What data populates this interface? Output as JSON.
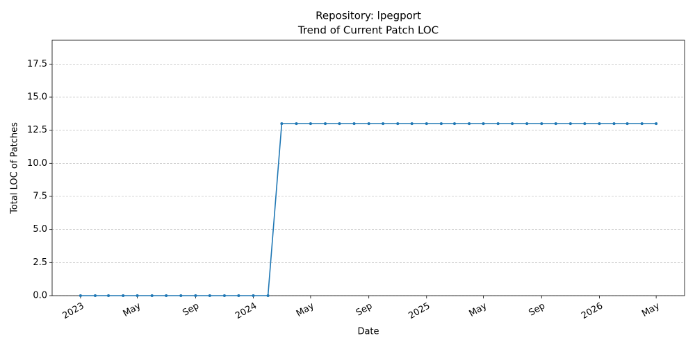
{
  "chart_data": {
    "type": "line",
    "title": "Repository: lpegport",
    "subtitle": "Trend of Current Patch LOC",
    "x_label": "Date",
    "y_label": "Total LOC of Patches",
    "x": [
      "2023-01",
      "2023-02",
      "2023-03",
      "2023-04",
      "2023-05",
      "2023-06",
      "2023-07",
      "2023-08",
      "2023-09",
      "2023-10",
      "2023-11",
      "2023-12",
      "2024-01",
      "2024-02",
      "2024-03",
      "2024-04",
      "2024-05",
      "2024-06",
      "2024-07",
      "2024-08",
      "2024-09",
      "2024-10",
      "2024-11",
      "2024-12",
      "2025-01",
      "2025-02",
      "2025-03",
      "2025-04",
      "2025-05",
      "2025-06",
      "2025-07",
      "2025-08",
      "2025-09",
      "2025-10",
      "2025-11",
      "2025-12",
      "2026-01",
      "2026-02",
      "2026-03",
      "2026-04",
      "2026-05"
    ],
    "series": [
      {
        "name": "Total LOC of Patches",
        "color": "#1f77b4",
        "values": [
          0,
          0,
          0,
          0,
          0,
          0,
          0,
          0,
          0,
          0,
          0,
          0,
          0,
          0,
          13,
          13,
          13,
          13,
          13,
          13,
          13,
          13,
          13,
          13,
          13,
          13,
          13,
          13,
          13,
          13,
          13,
          13,
          13,
          13,
          13,
          13,
          13,
          13,
          13,
          13,
          13
        ]
      }
    ],
    "xlim": [
      "2022-11-02",
      "2026-06-30"
    ],
    "xticks": [
      {
        "value": "2023-01-01",
        "label": "2023"
      },
      {
        "value": "2023-05-01",
        "label": "May"
      },
      {
        "value": "2023-09-01",
        "label": "Sep"
      },
      {
        "value": "2024-01-01",
        "label": "2024"
      },
      {
        "value": "2024-05-01",
        "label": "May"
      },
      {
        "value": "2024-09-01",
        "label": "Sep"
      },
      {
        "value": "2025-01-01",
        "label": "2025"
      },
      {
        "value": "2025-05-01",
        "label": "May"
      },
      {
        "value": "2025-09-01",
        "label": "Sep"
      },
      {
        "value": "2026-01-01",
        "label": "2026"
      },
      {
        "value": "2026-05-01",
        "label": "May"
      }
    ],
    "ylim": [
      0,
      19.3
    ],
    "yticks": [
      {
        "value": 0,
        "label": "0.0"
      },
      2.5,
      {
        "value": 5,
        "label": "5.0"
      },
      7.5,
      {
        "value": 10,
        "label": "10.0"
      },
      12.5,
      {
        "value": 15,
        "label": "15.0"
      },
      17.5
    ],
    "grid": true
  }
}
